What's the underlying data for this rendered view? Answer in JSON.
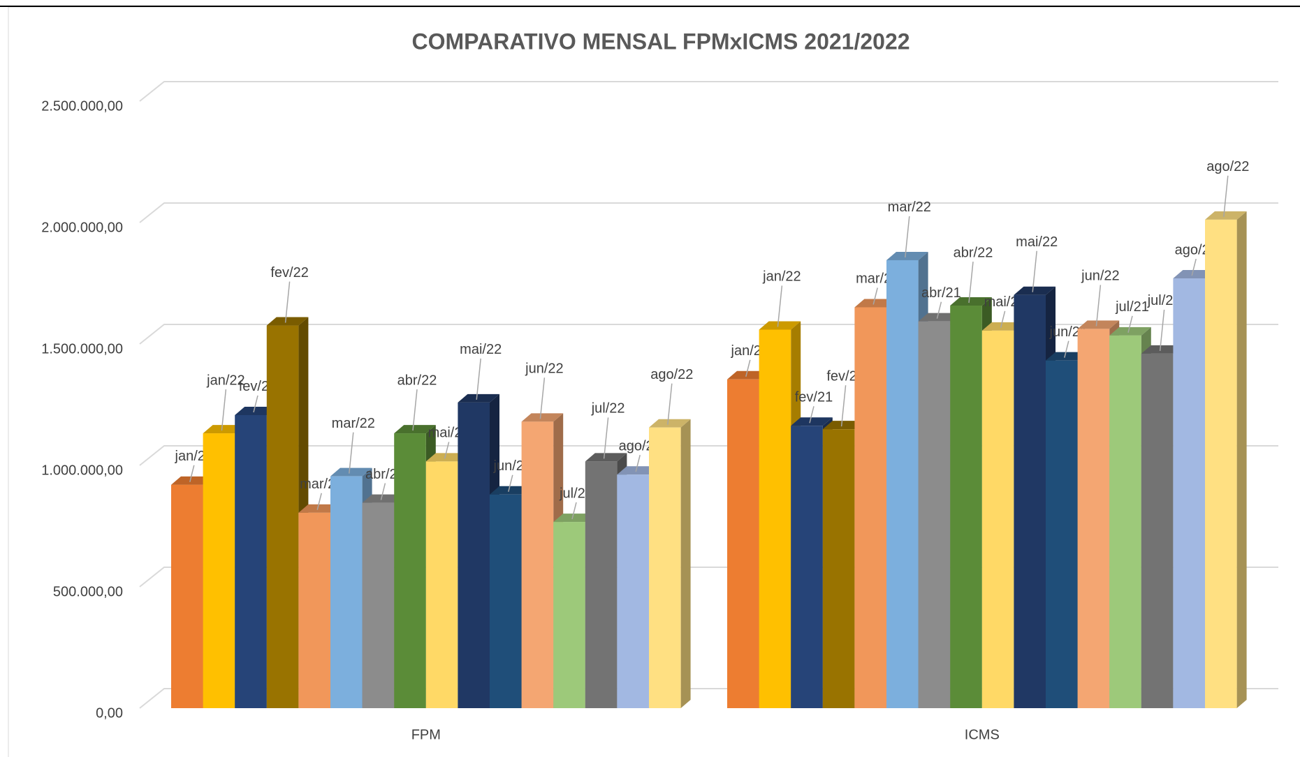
{
  "chart_data": {
    "type": "bar3d",
    "title": "COMPARATIVO MENSAL FPMxICMS 2021/2022",
    "categories": [
      "FPM",
      "ICMS"
    ],
    "series": [
      {
        "name": "jan/21",
        "color": "#ed7d31",
        "values": [
          920000,
          1354000
        ]
      },
      {
        "name": "jan/22",
        "color": "#ffc000",
        "values": [
          1132000,
          1559000
        ]
      },
      {
        "name": "fev/21",
        "color": "#264478",
        "values": [
          1207000,
          1163000
        ]
      },
      {
        "name": "fev/22",
        "color": "#997300",
        "values": [
          1576000,
          1149000
        ]
      },
      {
        "name": "mar/21",
        "color": "#f1975a",
        "values": [
          805000,
          1651000
        ]
      },
      {
        "name": "mar/22",
        "color": "#7cafdd",
        "values": [
          955000,
          1845000
        ]
      },
      {
        "name": "abr/21",
        "color": "#8c8c8c",
        "values": [
          846000,
          1593000
        ]
      },
      {
        "name": "abr/22",
        "color": "#5b8c38",
        "values": [
          1132000,
          1658000
        ]
      },
      {
        "name": "mai/21",
        "color": "#ffd966",
        "values": [
          1016000,
          1555000
        ]
      },
      {
        "name": "mai/22",
        "color": "#203864",
        "values": [
          1259000,
          1702000
        ]
      },
      {
        "name": "jun/21",
        "color": "#1f4e79",
        "values": [
          880000,
          1432000
        ]
      },
      {
        "name": "jun/22",
        "color": "#f4a672",
        "values": [
          1180000,
          1562000
        ]
      },
      {
        "name": "jul/21",
        "color": "#9dc97a",
        "values": [
          767000,
          1535000
        ]
      },
      {
        "name": "jul/22",
        "color": "#737373",
        "values": [
          1016000,
          1460000
        ]
      },
      {
        "name": "ago/21",
        "color": "#a2b8e2",
        "values": [
          962000,
          1770000
        ]
      },
      {
        "name": "ago/22",
        "color": "#ffe082",
        "values": [
          1156000,
          2012000
        ]
      }
    ],
    "ylim": [
      0,
      2500000
    ],
    "yticks": [
      {
        "value": 0,
        "label": "0,00"
      },
      {
        "value": 500000,
        "label": "500.000,00"
      },
      {
        "value": 1000000,
        "label": "1.000.000,00"
      },
      {
        "value": 1500000,
        "label": "1.500.000,00"
      },
      {
        "value": 2000000,
        "label": "2.000.000,00"
      },
      {
        "value": 2500000,
        "label": "2.500.000,00"
      }
    ],
    "grid": true
  }
}
